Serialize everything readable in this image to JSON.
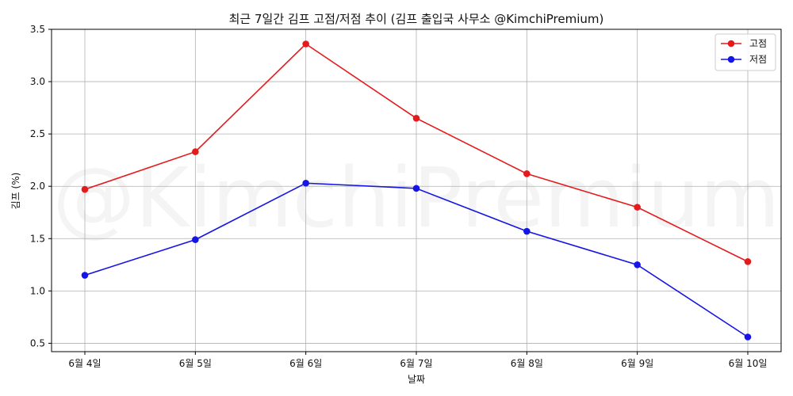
{
  "chart_data": {
    "type": "line",
    "title": "최근 7일간 김프 고점/저점 추이 (김프 출입국 사무소 @KimchiPremium)",
    "xlabel": "날짜",
    "ylabel": "김프 (%)",
    "categories": [
      "6월 4일",
      "6월 5일",
      "6월 6일",
      "6월 7일",
      "6월 8일",
      "6월 9일",
      "6월 10일"
    ],
    "series": [
      {
        "name": "고점",
        "color": "#e41a1c",
        "values": [
          1.97,
          2.33,
          3.36,
          2.65,
          2.12,
          1.8,
          1.28
        ]
      },
      {
        "name": "저점",
        "color": "#1515e6",
        "values": [
          1.15,
          1.49,
          2.03,
          1.98,
          1.57,
          1.25,
          0.56
        ]
      }
    ],
    "ylim": [
      0.42,
      3.5
    ],
    "yticks": [
      0.5,
      1.0,
      1.5,
      2.0,
      2.5,
      3.0,
      3.5
    ],
    "grid": true,
    "legend_position": "top-right",
    "watermark": "@KimchiPremium"
  }
}
